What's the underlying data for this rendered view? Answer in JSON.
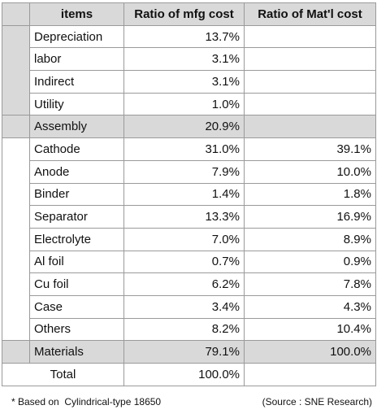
{
  "table": {
    "header": [
      "items",
      "Ratio of mfg cost",
      "Ratio of Mat'l cost"
    ],
    "groups": [
      {
        "rows": [
          {
            "item": "Depreciation",
            "mfg": "13.7%"
          },
          {
            "item": "labor",
            "mfg": "3.1%"
          },
          {
            "item": "Indirect",
            "mfg": "3.1%"
          },
          {
            "item": "Utility",
            "mfg": "1.0%"
          }
        ],
        "subtotal": {
          "item": "Assembly",
          "mfg": "20.9%"
        }
      },
      {
        "rows": [
          {
            "item": "Cathode",
            "mfg": "31.0%",
            "mat": "39.1%"
          },
          {
            "item": "Anode",
            "mfg": "7.9%",
            "mat": "10.0%"
          },
          {
            "item": "Binder",
            "mfg": "1.4%",
            "mat": "1.8%"
          },
          {
            "item": "Separator",
            "mfg": "13.3%",
            "mat": "16.9%"
          },
          {
            "item": "Electrolyte",
            "mfg": "7.0%",
            "mat": "8.9%"
          },
          {
            "item": "Al foil",
            "mfg": "0.7%",
            "mat": "0.9%"
          },
          {
            "item": "Cu foil",
            "mfg": "6.2%",
            "mat": "7.8%"
          },
          {
            "item": "Case",
            "mfg": "3.4%",
            "mat": "4.3%"
          },
          {
            "item": "Others",
            "mfg": "8.2%",
            "mat": "10.4%"
          }
        ],
        "subtotal": {
          "item": "Materials",
          "mfg": "79.1%",
          "mat": "100.0%"
        }
      }
    ],
    "total": {
      "item": "Total",
      "mfg": "100.0%"
    }
  },
  "footnote": {
    "basis": "* Based on  Cylindrical-type 18650",
    "source": "(Source : SNE Research)"
  }
}
